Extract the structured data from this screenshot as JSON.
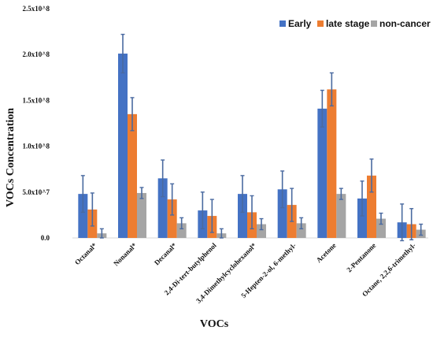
{
  "chart_data": {
    "type": "bar",
    "title": "",
    "xlabel": "VOCs",
    "ylabel": "VOCs Concentration",
    "ylim": [
      0,
      250000000
    ],
    "yticks": [
      {
        "value": 0,
        "label": "0.0"
      },
      {
        "value": 50000000,
        "label": "5.0x10^7"
      },
      {
        "value": 100000000,
        "label": "1.0x10^8"
      },
      {
        "value": 150000000,
        "label": "1.5x10^8"
      },
      {
        "value": 200000000,
        "label": "2.0x10^8"
      },
      {
        "value": 250000000,
        "label": "2.5x10^8"
      }
    ],
    "grid": false,
    "legend_position": "top-right",
    "categories": [
      "Octanal*",
      "Nonanal*",
      "Decanal*",
      "2,4-Di-tert-butylphenol",
      "3,4-Dimethylcyclohexanol*",
      "5-Hepten-2-ol, 6-methyl-",
      "Acetone",
      "2-Pentanone",
      "Octane, 2,2,6-trimethyl-"
    ],
    "series": [
      {
        "name": "Early",
        "color": "#4472C4",
        "values": [
          48000000,
          201000000,
          65000000,
          30000000,
          48000000,
          53000000,
          141000000,
          43000000,
          17000000
        ],
        "errors": [
          20000000,
          21000000,
          20000000,
          20000000,
          20000000,
          20000000,
          20000000,
          19000000,
          20000000
        ]
      },
      {
        "name": "late stage",
        "color": "#ED7D31",
        "values": [
          31000000,
          135000000,
          42000000,
          24000000,
          28000000,
          36000000,
          162000000,
          68000000,
          15000000
        ],
        "errors": [
          18000000,
          18000000,
          17000000,
          18000000,
          18000000,
          18000000,
          18000000,
          18000000,
          17000000
        ]
      },
      {
        "name": "non-cancer",
        "color": "#A5A5A5",
        "values": [
          5000000,
          49000000,
          16000000,
          5000000,
          15000000,
          16000000,
          48000000,
          21000000,
          9000000
        ],
        "errors": [
          5000000,
          6000000,
          6000000,
          5000000,
          6000000,
          6000000,
          6000000,
          6000000,
          6000000
        ]
      }
    ],
    "error_bar_color": "#4A6AA0"
  }
}
